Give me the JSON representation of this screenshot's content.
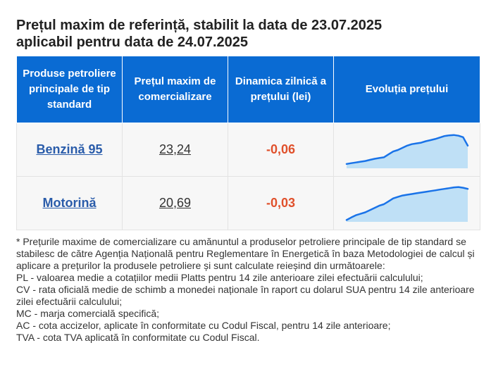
{
  "title_line1": "Prețul maxim de referință, stabilit la data de 23.07.2025",
  "title_line2": "aplicabil pentru data de 24.07.2025",
  "table": {
    "headers": [
      "Produse petroliere principale de tip standard",
      "Prețul maxim de comercializare",
      "Dinamica zilnică a prețului (lei)",
      "Evoluția prețului"
    ],
    "rows": [
      {
        "product": "Benzină 95",
        "price": "23,24",
        "change": "-0,06"
      },
      {
        "product": "Motorină",
        "price": "20,69",
        "change": "-0,03"
      }
    ]
  },
  "sparkline_colors": {
    "line": "#1a73e8",
    "fill": "#bfe0f6",
    "change": "#e0502b"
  },
  "trend_benzina": [
    0.12,
    0.14,
    0.16,
    0.18,
    0.2,
    0.23,
    0.26,
    0.28,
    0.3,
    0.38,
    0.46,
    0.5,
    0.56,
    0.62,
    0.66,
    0.68,
    0.7,
    0.74,
    0.77,
    0.8,
    0.84,
    0.88,
    0.9,
    0.91,
    0.89,
    0.85,
    0.62
  ],
  "trend_motorina": [
    0.05,
    0.12,
    0.18,
    0.22,
    0.26,
    0.32,
    0.38,
    0.44,
    0.48,
    0.56,
    0.64,
    0.68,
    0.72,
    0.74,
    0.76,
    0.78,
    0.8,
    0.82,
    0.84,
    0.86,
    0.88,
    0.9,
    0.92,
    0.94,
    0.95,
    0.93,
    0.9
  ],
  "notes": [
    "* Prețurile maxime de comercializare cu amănuntul a produselor petroliere principale de tip standard se stabilesc de către Agenția Națională pentru Reglementare în Energetică în baza Metodologiei de calcul și aplicare a prețurilor la produsele petroliere și sunt calculate reieșind din următoarele:",
    "PL - valoarea medie a cotațiilor medii Platts pentru 14 zile anterioare zilei efectuării calculului;",
    "CV - rata oficială medie de schimb a monedei naționale în raport cu dolarul SUA pentru 14 zile anterioare zilei efectuării calculului;",
    "MC - marja comercială specifică;",
    "AC - cota accizelor, aplicate în conformitate cu Codul Fiscal, pentru 14 zile anterioare;",
    "TVA - cota TVA aplicată în conformitate cu Codul Fiscal."
  ]
}
